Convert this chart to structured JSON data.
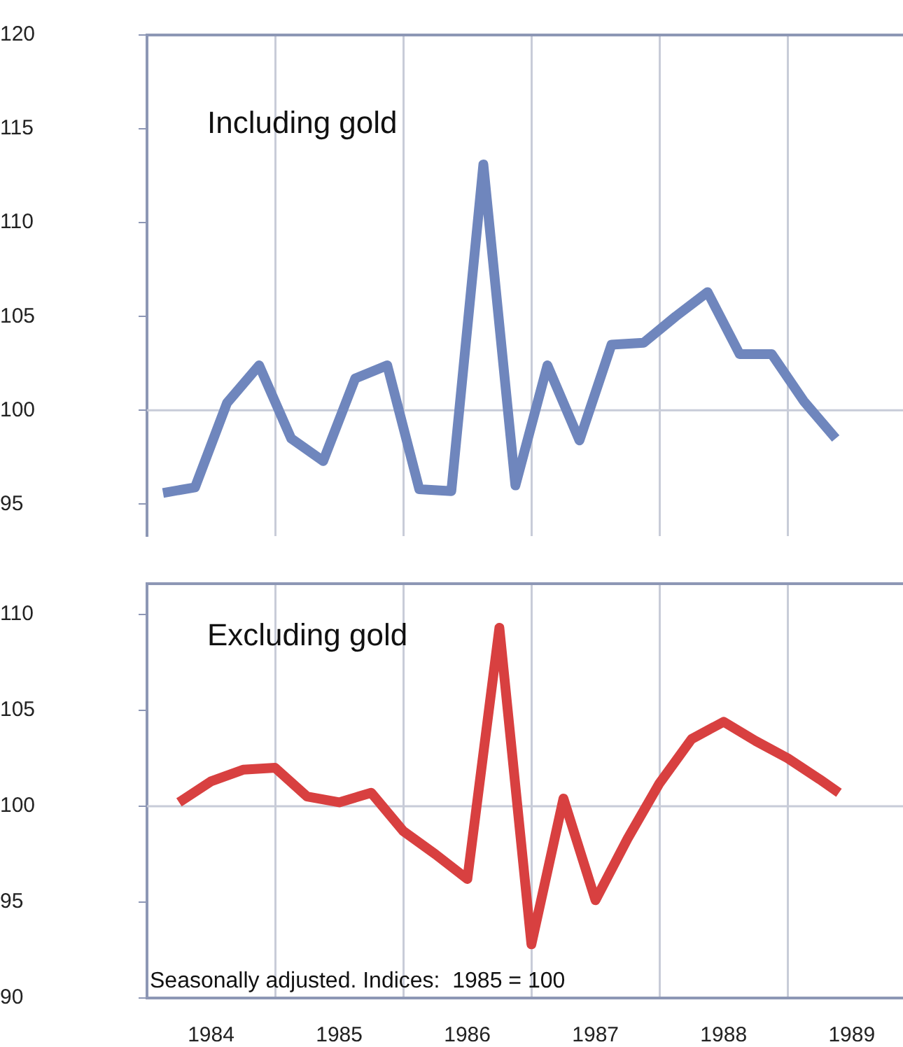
{
  "chart_data": [
    {
      "type": "line",
      "title": "Including gold",
      "xlim": [
        1984,
        1989.9
      ],
      "ylim": [
        93.3,
        120
      ],
      "xticks": [
        {
          "value": 1985,
          "label": null
        },
        {
          "value": 1986,
          "label": null
        },
        {
          "value": 1987,
          "label": null
        },
        {
          "value": 1988,
          "label": null
        },
        {
          "value": 1989,
          "label": null
        }
      ],
      "yticks": [
        95,
        100,
        105,
        110,
        115,
        120
      ],
      "grid": "x",
      "tick_labels": "y",
      "legend": false,
      "marker": "none",
      "line_style": "solid",
      "ref_lines": [
        {
          "axis": "y",
          "value": 100,
          "color": "#c8ccd8"
        }
      ],
      "series": [
        {
          "color": "#6f86bd",
          "x": [
            1984.125,
            1984.375,
            1984.625,
            1984.875,
            1985.125,
            1985.375,
            1985.625,
            1985.875,
            1986.125,
            1986.375,
            1986.625,
            1986.875,
            1987.125,
            1987.375,
            1987.625,
            1987.875,
            1988.125,
            1988.375,
            1988.625,
            1988.875,
            1989.125,
            1989.375
          ],
          "values": [
            95.6,
            95.9,
            100.4,
            102.4,
            98.5,
            97.3,
            101.7,
            102.4,
            95.8,
            95.7,
            113.1,
            96.0,
            102.4,
            98.4,
            103.5,
            103.6,
            105.0,
            106.3,
            103.0,
            103.0,
            100.5,
            98.5
          ]
        }
      ]
    },
    {
      "type": "line",
      "title": "Excluding gold",
      "xlim": [
        1984,
        1989.9
      ],
      "ylim": [
        90,
        111.6
      ],
      "xticks": [
        {
          "value": 1984.5,
          "label": "1984"
        },
        {
          "value": 1985,
          "label": null
        },
        {
          "value": 1985.5,
          "label": "1985"
        },
        {
          "value": 1986,
          "label": null
        },
        {
          "value": 1986.5,
          "label": "1986"
        },
        {
          "value": 1987,
          "label": null
        },
        {
          "value": 1987.5,
          "label": "1987"
        },
        {
          "value": 1988,
          "label": null
        },
        {
          "value": 1988.5,
          "label": "1988"
        },
        {
          "value": 1989,
          "label": null
        },
        {
          "value": 1989.5,
          "label": "1989"
        }
      ],
      "yticks": [
        90,
        95,
        100,
        105,
        110
      ],
      "grid": "x",
      "legend": false,
      "marker": "none",
      "line_style": "solid",
      "ref_lines": [
        {
          "axis": "y",
          "value": 100,
          "color": "#c8ccd8"
        }
      ],
      "annotations": [
        "Seasonally adjusted. Indices:  1985 = 100"
      ],
      "series": [
        {
          "color": "#d84040",
          "x": [
            1984.25,
            1984.5,
            1984.75,
            1985,
            1985.25,
            1985.5,
            1985.75,
            1986,
            1986.25,
            1986.5,
            1986.75,
            1987,
            1987.25,
            1987.5,
            1987.75,
            1988,
            1988.25,
            1988.5,
            1988.75,
            1989,
            1989.25,
            1989.4
          ],
          "values": [
            100.2,
            101.3,
            101.9,
            102.0,
            100.5,
            100.2,
            100.7,
            98.7,
            97.5,
            96.2,
            109.3,
            92.8,
            100.4,
            95.1,
            98.3,
            101.2,
            103.5,
            104.4,
            103.4,
            102.5,
            101.4,
            100.7
          ]
        }
      ]
    }
  ]
}
